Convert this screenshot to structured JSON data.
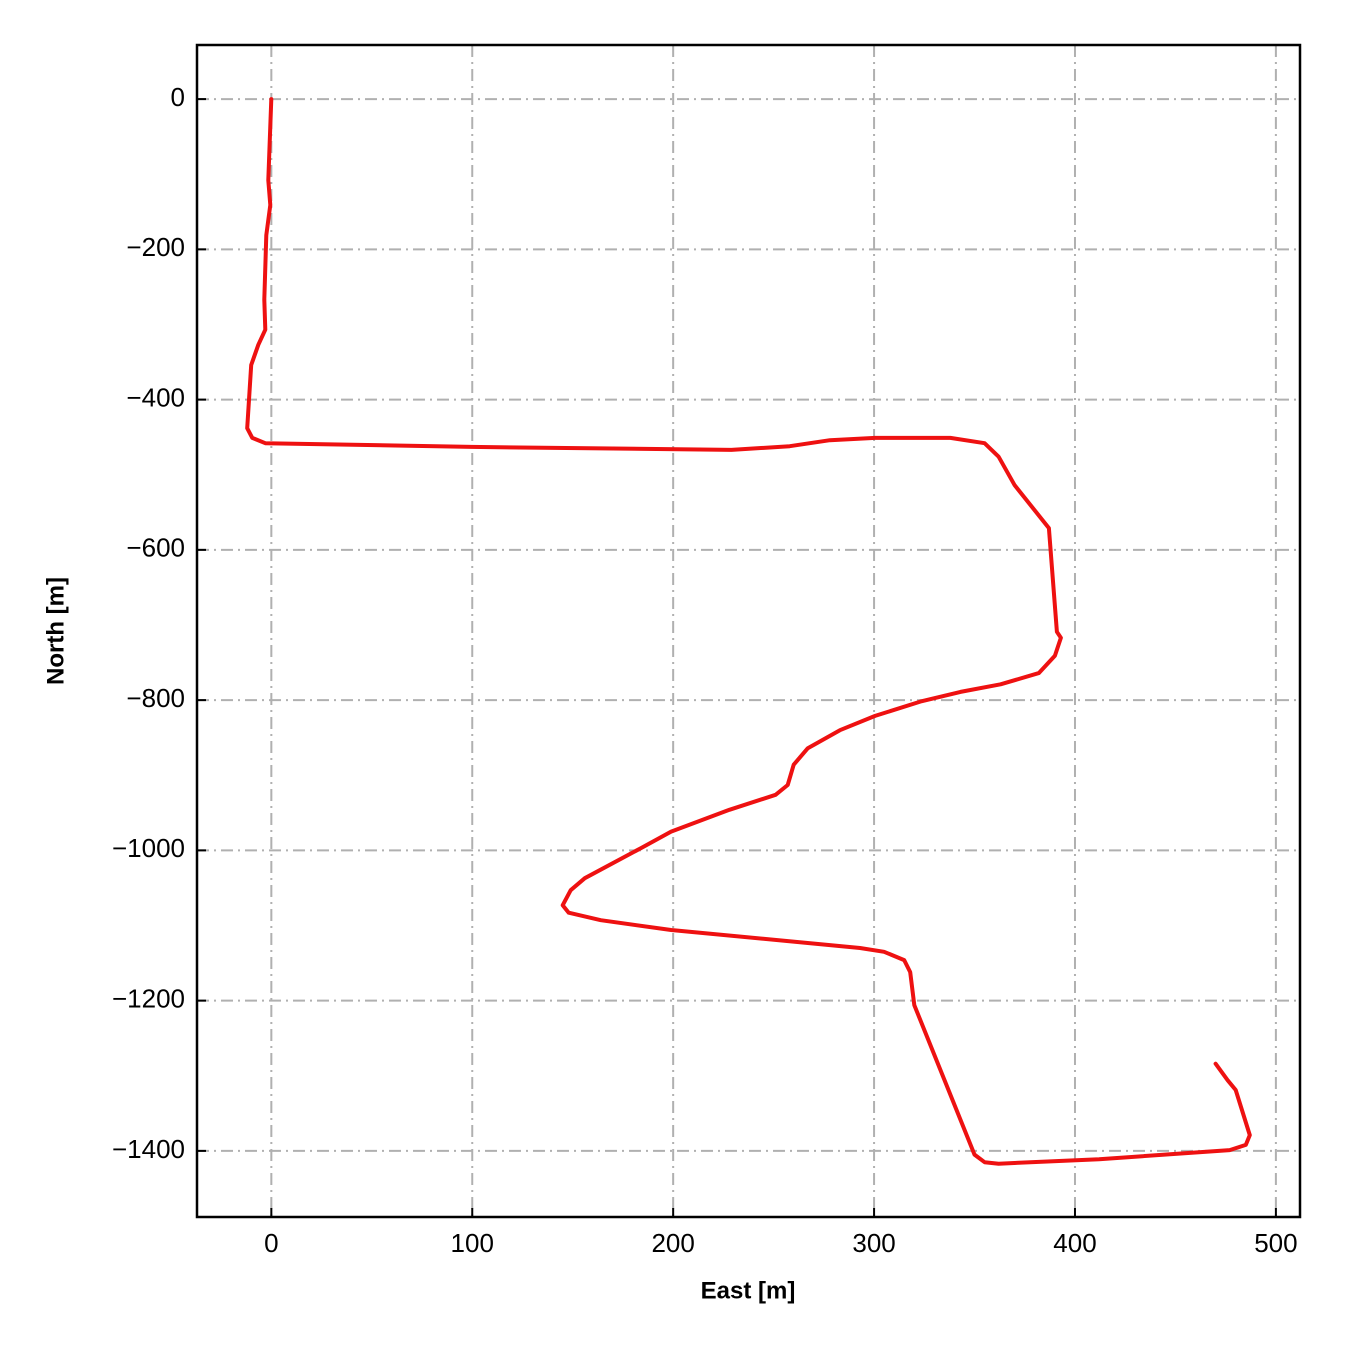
{
  "chart_data": {
    "type": "line",
    "xlabel": "East [m]",
    "ylabel": "North [m]",
    "xlim": [
      -37,
      512
    ],
    "ylim": [
      -1488,
      72
    ],
    "xticks": [
      0,
      100,
      200,
      300,
      400,
      500
    ],
    "yticks": [
      0,
      {
        "value": -200,
        "label": "−200"
      },
      {
        "value": -400,
        "label": "−400"
      },
      {
        "value": -600,
        "label": "−600"
      },
      {
        "value": -800,
        "label": "−800"
      },
      {
        "value": -1000,
        "label": "−1000"
      },
      {
        "value": -1200,
        "label": "−1200"
      },
      {
        "value": -1400,
        "label": "−1400"
      }
    ],
    "grid": true,
    "series": [
      {
        "color": "#ee1111",
        "x": [
          0,
          -1.5,
          -0.5,
          -2.5,
          -3.5,
          -3,
          -6.5,
          -10,
          -12,
          -9.5,
          -3,
          99.5,
          229,
          258,
          278,
          300.5,
          338,
          355,
          362,
          370,
          387,
          391,
          393,
          390,
          382,
          363,
          343,
          323,
          300.5,
          283,
          267,
          260,
          257,
          251,
          228,
          199,
          184,
          156,
          149,
          145,
          148,
          164,
          199,
          293,
          305,
          315,
          318,
          320,
          350,
          355,
          362,
          412,
          477,
          485,
          487,
          480,
          476,
          470
        ],
        "values": [
          0,
          -108,
          -141,
          -181,
          -267,
          -307,
          -327,
          -354,
          -438,
          -451,
          -458,
          -463,
          -467,
          -462,
          -454,
          -451,
          -451,
          -458,
          -476,
          -514,
          -571,
          -709,
          -717,
          -741,
          -764,
          -779,
          -789,
          -802,
          -821,
          -840,
          -864,
          -886,
          -913,
          -926,
          -946,
          -975,
          -997,
          -1037,
          -1053,
          -1073,
          -1083,
          -1093,
          -1106,
          -1130,
          -1135,
          -1146,
          -1162,
          -1206,
          -1405,
          -1415,
          -1417,
          -1411,
          -1399,
          -1392,
          -1379,
          -1319,
          -1306,
          -1284
        ]
      }
    ]
  }
}
